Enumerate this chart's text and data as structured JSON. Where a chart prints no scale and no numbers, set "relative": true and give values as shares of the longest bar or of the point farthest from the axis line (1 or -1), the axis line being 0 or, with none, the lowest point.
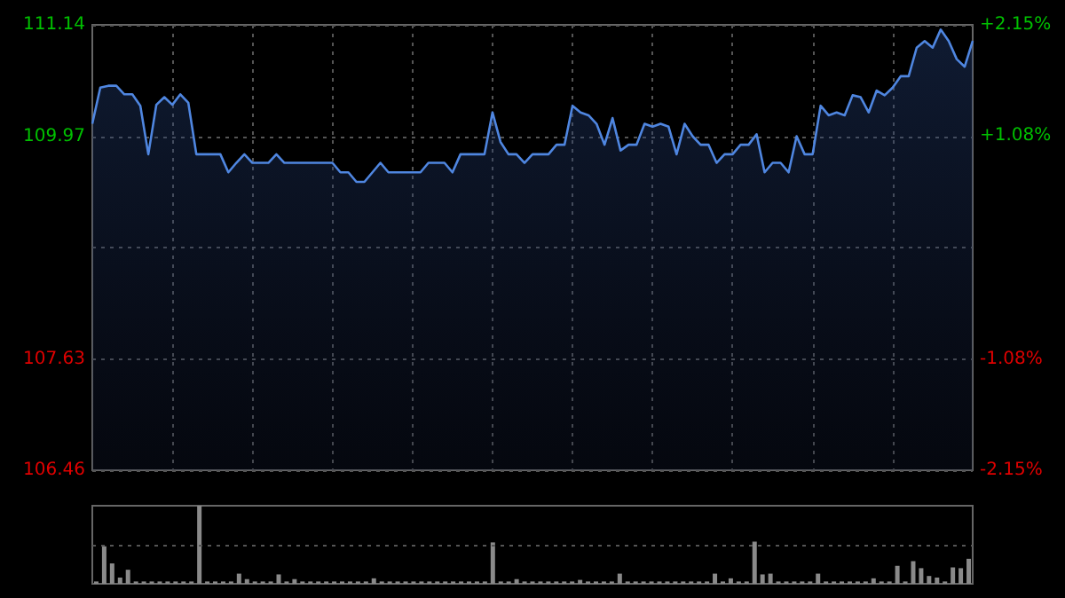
{
  "chart_data": [
    {
      "type": "area",
      "categories": [
        null,
        null,
        null,
        null,
        null,
        null,
        null,
        null,
        null,
        null,
        null,
        null,
        null,
        null,
        null,
        null,
        null,
        null,
        null,
        null,
        null,
        null,
        null,
        null,
        null,
        null,
        null,
        null,
        null,
        null,
        null,
        null,
        null,
        null,
        null,
        null,
        null,
        null,
        null,
        null,
        null,
        null,
        null,
        null,
        null,
        null,
        null,
        null,
        null,
        null,
        null,
        null,
        null,
        null,
        null,
        null,
        null,
        null,
        null,
        null,
        null,
        null,
        null,
        null,
        null,
        null,
        null,
        null,
        null,
        null,
        null,
        null,
        null,
        null,
        null,
        null,
        null,
        null,
        null,
        null,
        null,
        null,
        null,
        null,
        null,
        null,
        null,
        null,
        null,
        null,
        null,
        null,
        null,
        null,
        null,
        null,
        null,
        null,
        null,
        null,
        null,
        null,
        null,
        null,
        null,
        null,
        null,
        null,
        null,
        null,
        null
      ],
      "series": [
        {
          "color": "#4f86e0",
          "values": [
            110.1,
            110.48,
            110.5,
            110.5,
            110.41,
            110.41,
            110.29,
            109.78,
            110.3,
            110.38,
            110.3,
            110.41,
            110.32,
            109.78,
            109.78,
            109.78,
            109.78,
            109.59,
            109.69,
            109.78,
            109.69,
            109.69,
            109.69,
            109.78,
            109.69,
            109.69,
            109.69,
            109.69,
            109.69,
            109.69,
            109.69,
            109.59,
            109.59,
            109.49,
            109.49,
            109.59,
            109.69,
            109.59,
            109.59,
            109.59,
            109.59,
            109.59,
            109.69,
            109.69,
            109.69,
            109.59,
            109.78,
            109.78,
            109.78,
            109.78,
            110.22,
            109.91,
            109.78,
            109.78,
            109.69,
            109.78,
            109.78,
            109.78,
            109.88,
            109.88,
            110.29,
            110.22,
            110.19,
            110.1,
            109.88,
            110.16,
            109.82,
            109.88,
            109.88,
            110.1,
            110.07,
            110.1,
            110.07,
            109.78,
            110.1,
            109.97,
            109.88,
            109.88,
            109.69,
            109.78,
            109.78,
            109.88,
            109.88,
            109.99,
            109.59,
            109.69,
            109.69,
            109.59,
            109.97,
            109.78,
            109.78,
            110.29,
            110.19,
            110.22,
            110.19,
            110.4,
            110.38,
            110.22,
            110.45,
            110.4,
            110.48,
            110.6,
            110.6,
            110.9,
            110.97,
            110.9,
            111.09,
            110.97,
            110.78,
            110.7,
            110.97
          ]
        }
      ],
      "ylim": [
        106.46,
        111.14
      ],
      "yticks": [
        106.46,
        107.63,
        {
          "value": 108.8,
          "label": null
        },
        109.97,
        111.14
      ],
      "y2lim": [
        -2.15,
        2.15
      ],
      "y2ticks": [
        {
          "value": -2.15,
          "label": "-2.15%"
        },
        {
          "value": -1.08,
          "label": "-1.08%"
        },
        {
          "value": 0,
          "label": null
        },
        {
          "value": 1.08,
          "label": "+1.08%"
        },
        {
          "value": 2.15,
          "label": "+2.15%"
        }
      ],
      "grid": true
    },
    {
      "type": "bar",
      "relative": true,
      "categories": [
        null,
        null,
        null,
        null,
        null,
        null,
        null,
        null,
        null,
        null,
        null,
        null,
        null,
        null,
        null,
        null,
        null,
        null,
        null,
        null,
        null,
        null,
        null,
        null,
        null,
        null,
        null,
        null,
        null,
        null,
        null,
        null,
        null,
        null,
        null,
        null,
        null,
        null,
        null,
        null,
        null,
        null,
        null,
        null,
        null,
        null,
        null,
        null,
        null,
        null,
        null,
        null,
        null,
        null,
        null,
        null,
        null,
        null,
        null,
        null,
        null,
        null,
        null,
        null,
        null,
        null,
        null,
        null,
        null,
        null,
        null,
        null,
        null,
        null,
        null,
        null,
        null,
        null,
        null,
        null,
        null,
        null,
        null,
        null,
        null,
        null,
        null,
        null,
        null,
        null,
        null,
        null,
        null,
        null,
        null,
        null,
        null,
        null,
        null,
        null,
        null,
        null,
        null,
        null,
        null,
        null,
        null,
        null,
        null,
        null,
        null
      ],
      "series": [
        {
          "color": "#8a8a8a",
          "values": [
            0.03,
            0.48,
            0.26,
            0.08,
            0.18,
            0.03,
            0.03,
            0.03,
            0.03,
            0.03,
            0.03,
            0.03,
            0.03,
            1,
            0.03,
            0.03,
            0.03,
            0.03,
            0.13,
            0.06,
            0.03,
            0.03,
            0.03,
            0.12,
            0.03,
            0.06,
            0.03,
            0.03,
            0.03,
            0.03,
            0.03,
            0.03,
            0.03,
            0.03,
            0.03,
            0.07,
            0.03,
            0.03,
            0.03,
            0.03,
            0.03,
            0.03,
            0.03,
            0.03,
            0.03,
            0.03,
            0.03,
            0.03,
            0.03,
            0.03,
            0.53,
            0.03,
            0.03,
            0.06,
            0.03,
            0.03,
            0.03,
            0.03,
            0.03,
            0.03,
            0.03,
            0.05,
            0.03,
            0.03,
            0.03,
            0.03,
            0.13,
            0.03,
            0.03,
            0.03,
            0.03,
            0.03,
            0.03,
            0.03,
            0.03,
            0.03,
            0.03,
            0.03,
            0.13,
            0.03,
            0.07,
            0.03,
            0.03,
            0.54,
            0.12,
            0.13,
            0.03,
            0.03,
            0.03,
            0.03,
            0.03,
            0.13,
            0.03,
            0.03,
            0.03,
            0.03,
            0.03,
            0.03,
            0.07,
            0.03,
            0.03,
            0.23,
            0.03,
            0.29,
            0.2,
            0.1,
            0.08,
            0.03,
            0.21,
            0.2,
            0.32
          ]
        }
      ],
      "ref_lines": [
        {
          "axis": "y",
          "value": 0.5
        }
      ]
    }
  ]
}
